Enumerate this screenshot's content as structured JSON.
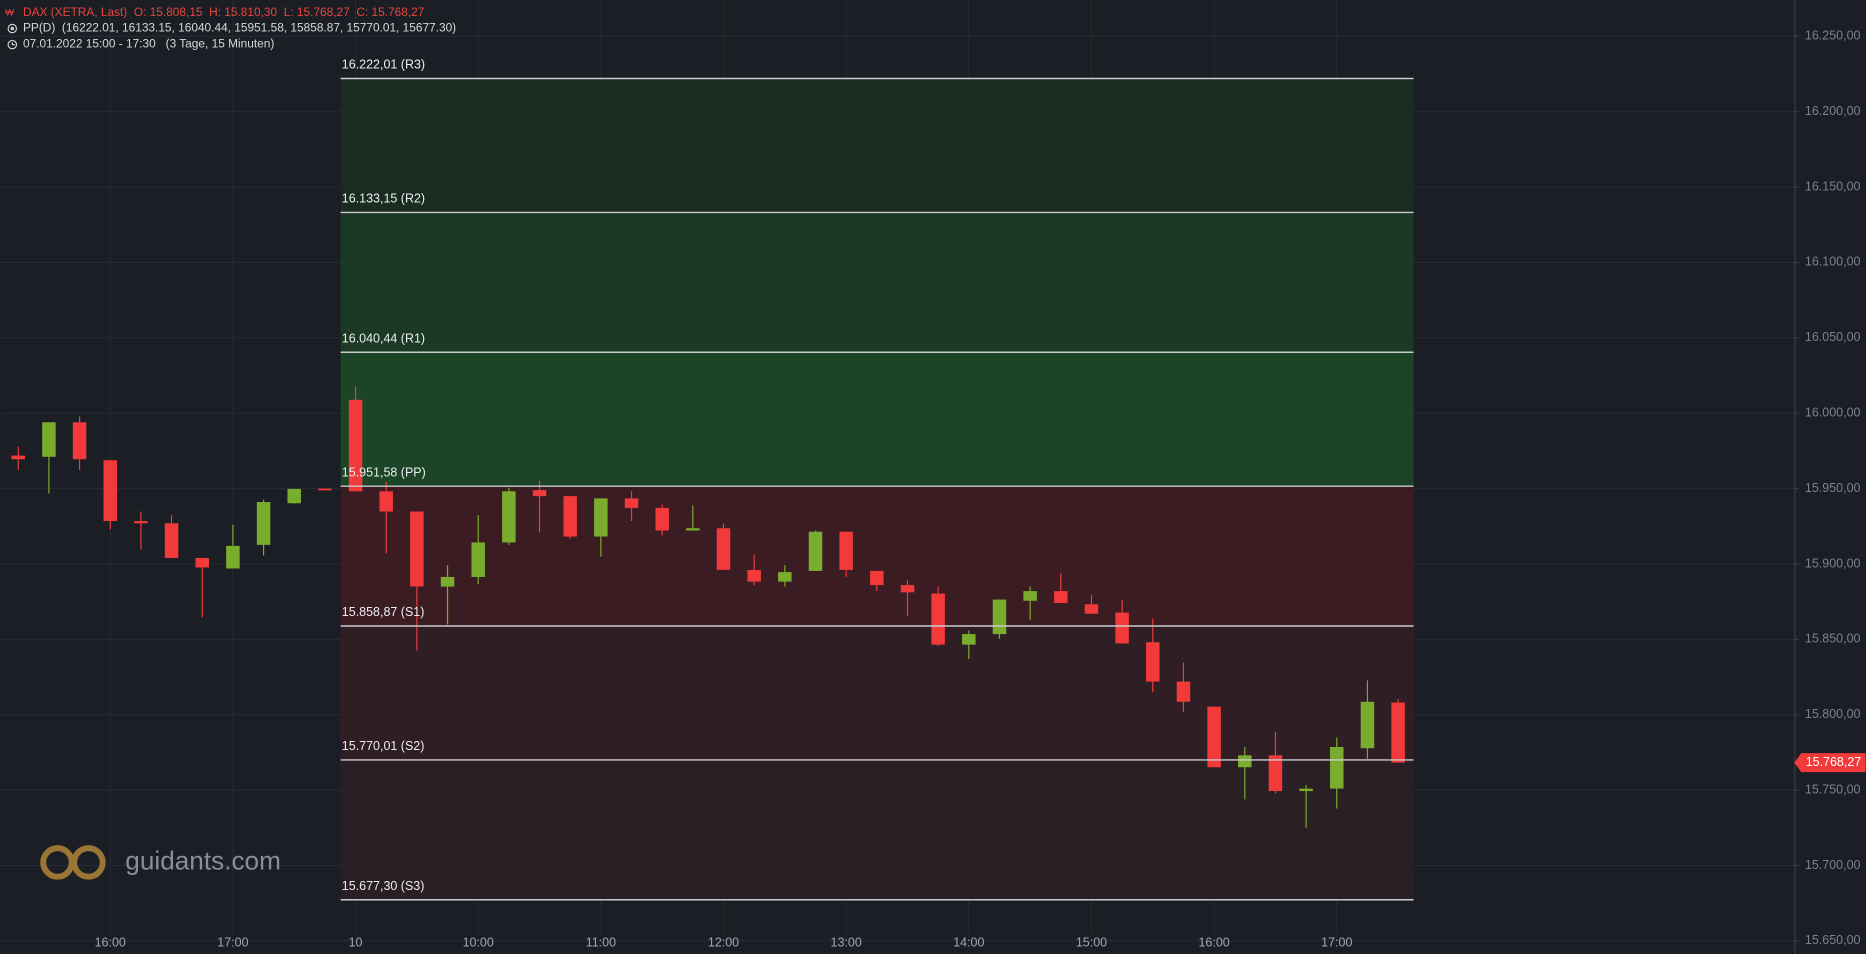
{
  "chart_data": {
    "type": "candlestick",
    "header": {
      "symbol_line": "DAX (XETRA, Last)  O: 15.808,15  H: 15.810,30  L: 15.768,27  C: 15.768,27",
      "indicator_line": "PP(D)  (16222.01, 16133.15, 16040.44, 15951.58, 15858.87, 15770.01, 15677.30)",
      "period_line": "07.01.2022 15:00 - 17:30   (3 Tage, 15 Minuten)"
    },
    "categories": [
      null,
      null,
      null,
      "16:00",
      null,
      null,
      null,
      "17:00",
      null,
      null,
      null,
      "10",
      null,
      null,
      null,
      "10:00",
      null,
      null,
      null,
      "11:00",
      null,
      null,
      null,
      "12:00",
      null,
      null,
      null,
      "13:00",
      null,
      null,
      null,
      "14:00",
      null,
      null,
      null,
      "15:00",
      null,
      null,
      null,
      "16:00",
      null,
      null,
      null,
      "17:00",
      null,
      null
    ],
    "open": [
      15971.9,
      15971.1,
      15994.0,
      15968.8,
      15928.5,
      15927.0,
      15904.0,
      15897.0,
      15912.7,
      15940.3,
      15950.0,
      16008.9,
      15948.2,
      15934.8,
      15885.0,
      15891.4,
      15914.3,
      15949.0,
      15945.0,
      15918.2,
      15943.5,
      15937.2,
      15922.2,
      15923.7,
      15896.0,
      15888.3,
      15895.4,
      15921.4,
      15895.4,
      15886.0,
      15880.4,
      15846.5,
      15853.5,
      15875.6,
      15882.0,
      15873.3,
      15867.8,
      15848.1,
      15822.0,
      15805.4,
      15765.2,
      15773.1,
      15749.4,
      15751.0,
      15777.8,
      15808.15
    ],
    "high": [
      15977.8,
      15994.0,
      15997.9,
      15969.0,
      15934.8,
      15932.4,
      15904.0,
      15926.0,
      15942.7,
      15950.0,
      15950.0,
      16017.6,
      15954.5,
      15934.8,
      15899.3,
      15932.4,
      15950.6,
      15955.3,
      15945.0,
      15943.5,
      15948.2,
      15939.6,
      15938.8,
      15926.9,
      15906.4,
      15899.3,
      15922.2,
      15921.4,
      15895.4,
      15889.1,
      15885.1,
      15855.9,
      15876.4,
      15885.1,
      15893.8,
      15879.6,
      15876.4,
      15863.8,
      15834.6,
      15805.4,
      15778.6,
      15788.8,
      15753.4,
      15784.9,
      15822.8,
      15810.3
    ],
    "low": [
      15962.4,
      15946.7,
      15962.4,
      15923.0,
      15909.6,
      15904.0,
      15864.6,
      15897.0,
      15905.6,
      15940.0,
      15949.5,
      15948.0,
      15907.2,
      15842.5,
      15859.9,
      15886.7,
      15912.7,
      15920.9,
      15916.7,
      15904.8,
      15928.5,
      15919.0,
      15922.2,
      15896.1,
      15886.0,
      15885.1,
      15895.4,
      15891.4,
      15882.0,
      15865.4,
      15845.7,
      15837.0,
      15850.4,
      15863.0,
      15874.1,
      15867.0,
      15847.3,
      15814.9,
      15801.6,
      15765.2,
      15743.9,
      15747.8,
      15725.0,
      15737.8,
      15770.8,
      15768.27
    ],
    "close": [
      15969.5,
      15994.0,
      15969.5,
      15928.5,
      15927.0,
      15904.0,
      15897.7,
      15912.0,
      15941.1,
      15949.8,
      15949.5,
      15948.2,
      15934.8,
      15885.1,
      15891.4,
      15914.3,
      15948.2,
      15945.0,
      15918.2,
      15943.5,
      15937.2,
      15922.2,
      15923.7,
      15896.1,
      15888.3,
      15894.6,
      15921.4,
      15896.1,
      15886.0,
      15881.2,
      15846.5,
      15853.5,
      15876.4,
      15882.0,
      15874.1,
      15867.0,
      15847.3,
      15822.0,
      15808.6,
      15765.2,
      15773.1,
      15749.4,
      15751.0,
      15778.6,
      15808.6,
      15768.27
    ],
    "up_color": "#7aad2e",
    "down_color": "#f23a3a",
    "ylim": [
      15650,
      16250
    ],
    "yticks": [
      {
        "value": 15650,
        "label": "15.650,00"
      },
      {
        "value": 15700,
        "label": "15.700,00"
      },
      {
        "value": 15750,
        "label": "15.750,00"
      },
      {
        "value": 15800,
        "label": "15.800,00"
      },
      {
        "value": 15850,
        "label": "15.850,00"
      },
      {
        "value": 15900,
        "label": "15.900,00"
      },
      {
        "value": 15950,
        "label": "15.950,00"
      },
      {
        "value": 16000,
        "label": "16.000,00"
      },
      {
        "value": 16050,
        "label": "16.050,00"
      },
      {
        "value": 16100,
        "label": "16.100,00"
      },
      {
        "value": 16150,
        "label": "16.150,00"
      },
      {
        "value": 16200,
        "label": "16.200,00"
      },
      {
        "value": 16250,
        "label": "16.250,00"
      }
    ],
    "grid": true,
    "pivots": [
      {
        "value": 16222.01,
        "label": "16.222,01 (R3)"
      },
      {
        "value": 16133.15,
        "label": "16.133,15 (R2)"
      },
      {
        "value": 16040.44,
        "label": "16.040,44 (R1)"
      },
      {
        "value": 15951.58,
        "label": "15.951,58 (PP)"
      },
      {
        "value": 15858.87,
        "label": "15.858,87 (S1)"
      },
      {
        "value": 15770.01,
        "label": "15.770,01 (S2)"
      },
      {
        "value": 15677.3,
        "label": "15.677,30 (S3)"
      }
    ],
    "zone_colors": [
      "#1a2b22",
      "#1b3925",
      "#1b4526",
      "#3a1c22",
      "#2f1e24",
      "#2a1f24"
    ],
    "last_price": {
      "value": 15768.27,
      "label": "15.768,27"
    },
    "watermark": "guidants.com"
  }
}
